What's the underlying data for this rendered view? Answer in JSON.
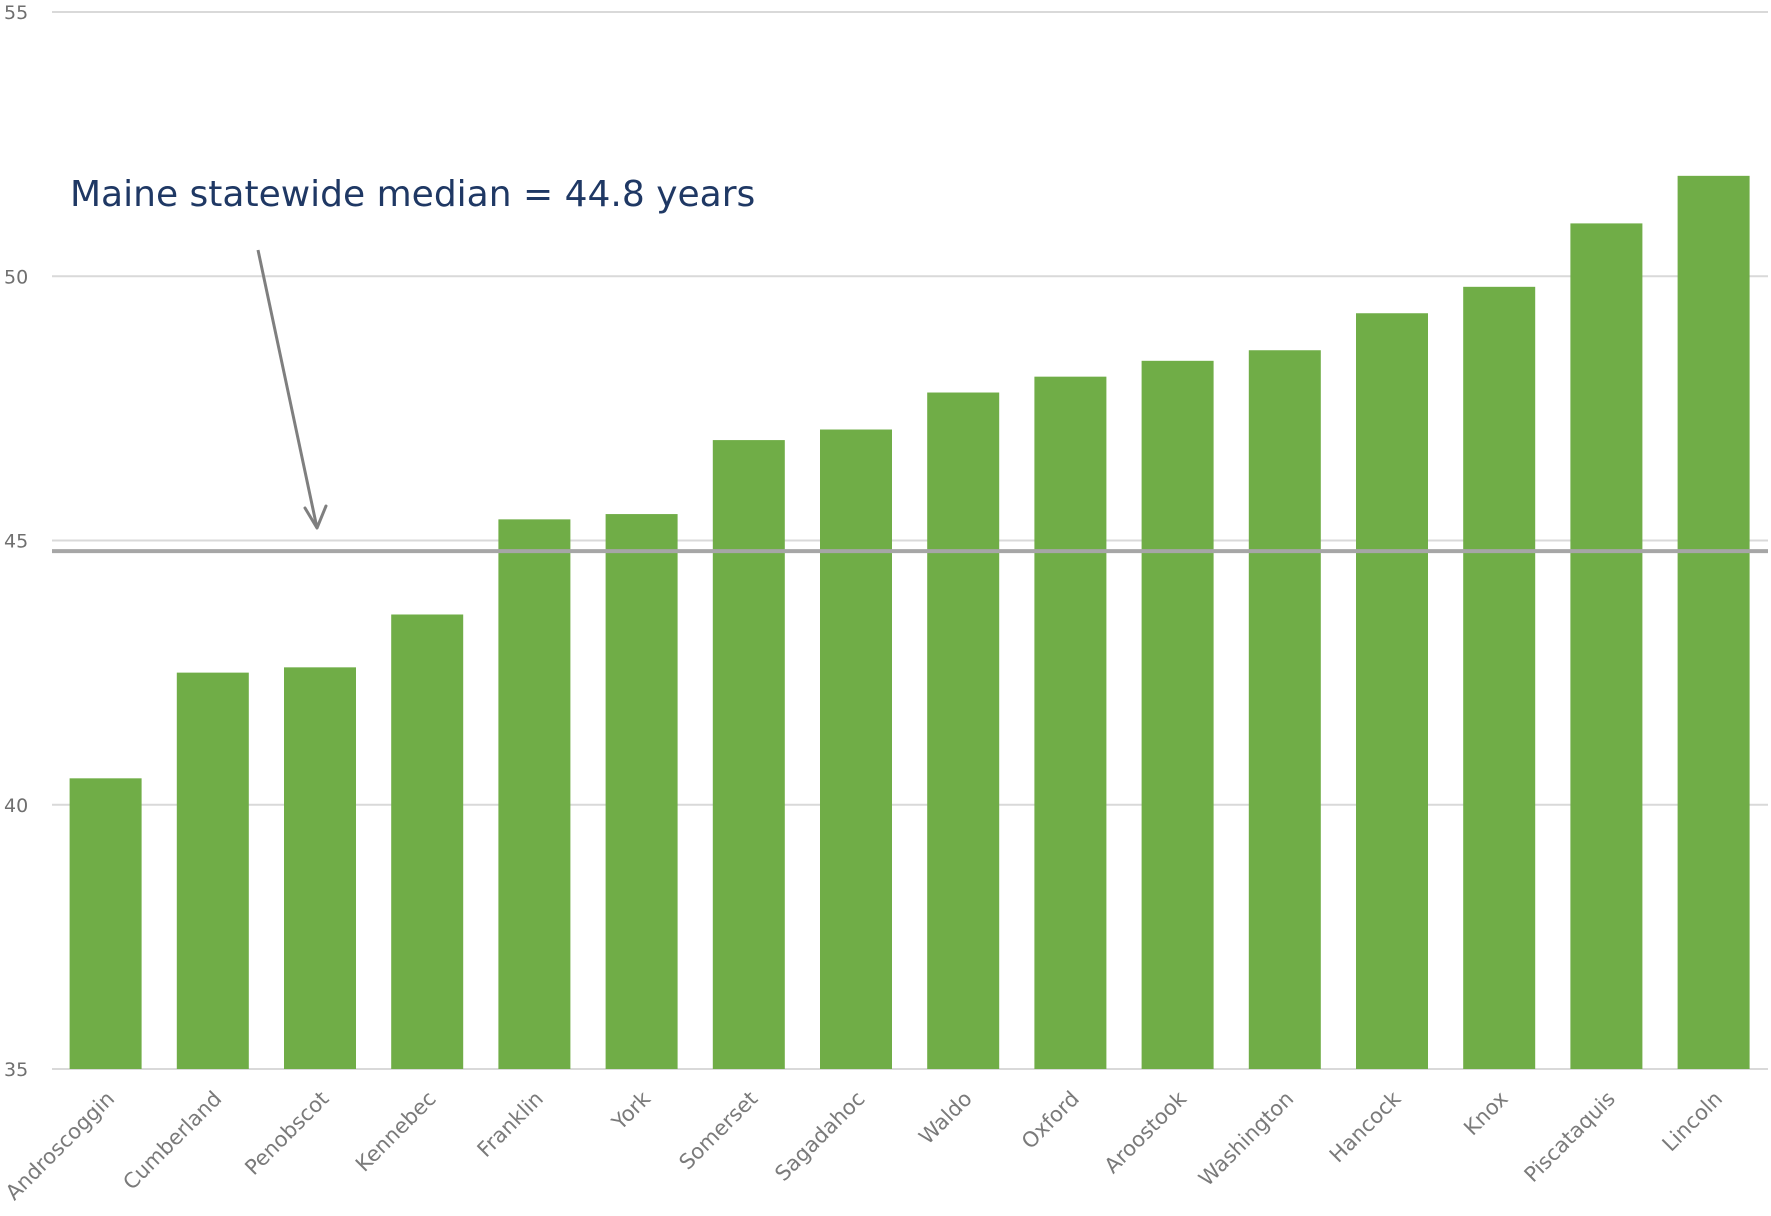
{
  "chart_data": {
    "type": "bar",
    "categories": [
      "Androscoggin",
      "Cumberland",
      "Penobscot",
      "Kennebec",
      "Franklin",
      "York",
      "Somerset",
      "Sagadahoc",
      "Waldo",
      "Oxford",
      "Aroostook",
      "Washington",
      "Hancock",
      "Knox",
      "Piscataquis",
      "Lincoln"
    ],
    "values": [
      40.5,
      42.5,
      42.6,
      43.6,
      45.4,
      45.5,
      46.9,
      47.1,
      47.8,
      48.1,
      48.4,
      48.6,
      49.3,
      49.8,
      51.0,
      51.9
    ],
    "ylim": [
      35,
      55
    ],
    "yticks": [
      35,
      40,
      45,
      50,
      55
    ],
    "grid": true,
    "reference_line": {
      "value": 44.8,
      "annotation": "Maine statewide median = 44.8 years"
    },
    "colors": {
      "bar": "#70ad47",
      "gridline": "#d9d9d9",
      "reference_line": "#a6a6a6",
      "arrow": "#7f7f7f",
      "annotation_text": "#1f3864"
    }
  }
}
